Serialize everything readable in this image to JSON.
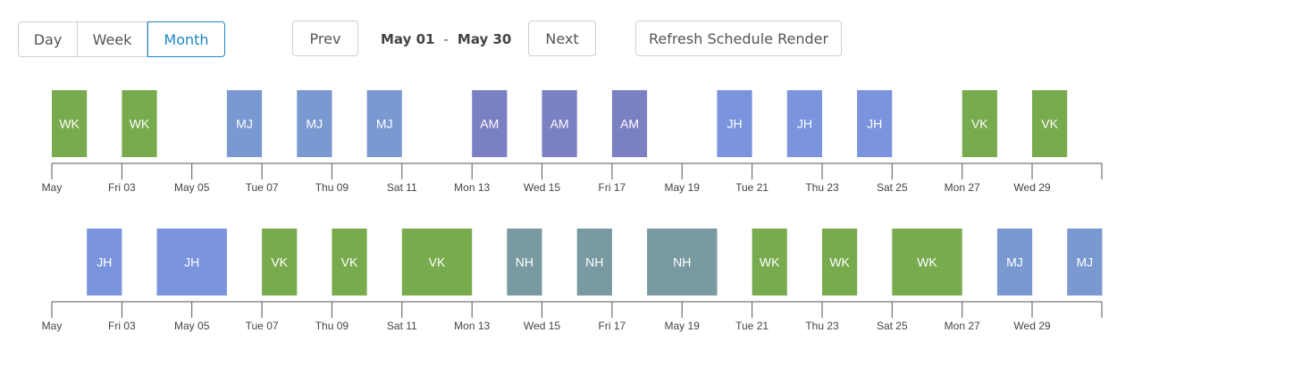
{
  "toolbar": {
    "view_day": "Day",
    "view_week": "Week",
    "view_month": "Month",
    "active_view": "Month",
    "prev": "Prev",
    "next": "Next",
    "range_start": "May 01",
    "range_sep": "-",
    "range_end": "May 30",
    "refresh": "Refresh Schedule Render"
  },
  "axis_ticks": [
    "May",
    "Fri 03",
    "May 05",
    "Tue 07",
    "Thu 09",
    "Sat 11",
    "Mon 13",
    "Wed 15",
    "Fri 17",
    "May 19",
    "Tue 21",
    "Thu 23",
    "Sat 25",
    "Mon 27",
    "Wed 29"
  ],
  "colors": {
    "WK": "#78aa4e",
    "VK": "#78aa4e",
    "MJ": "#7a99d0",
    "AM": "#7b80c2",
    "JH": "#7a95de",
    "NH": "#789aa0"
  },
  "timelines": [
    {
      "events": [
        {
          "label": "WK",
          "start": 1,
          "end": 2
        },
        {
          "label": "WK",
          "start": 3,
          "end": 4
        },
        {
          "label": "MJ",
          "start": 6,
          "end": 7
        },
        {
          "label": "MJ",
          "start": 8,
          "end": 9
        },
        {
          "label": "MJ",
          "start": 10,
          "end": 11
        },
        {
          "label": "AM",
          "start": 13,
          "end": 14
        },
        {
          "label": "AM",
          "start": 15,
          "end": 16
        },
        {
          "label": "AM",
          "start": 17,
          "end": 18
        },
        {
          "label": "JH",
          "start": 20,
          "end": 21
        },
        {
          "label": "JH",
          "start": 22,
          "end": 23
        },
        {
          "label": "JH",
          "start": 24,
          "end": 25
        },
        {
          "label": "VK",
          "start": 27,
          "end": 28
        },
        {
          "label": "VK",
          "start": 29,
          "end": 30
        }
      ]
    },
    {
      "events": [
        {
          "label": "JH",
          "start": 2,
          "end": 3
        },
        {
          "label": "JH",
          "start": 4,
          "end": 6
        },
        {
          "label": "VK",
          "start": 7,
          "end": 8
        },
        {
          "label": "VK",
          "start": 9,
          "end": 10
        },
        {
          "label": "VK",
          "start": 11,
          "end": 13
        },
        {
          "label": "NH",
          "start": 14,
          "end": 15
        },
        {
          "label": "NH",
          "start": 16,
          "end": 17
        },
        {
          "label": "NH",
          "start": 18,
          "end": 20
        },
        {
          "label": "WK",
          "start": 21,
          "end": 22
        },
        {
          "label": "WK",
          "start": 23,
          "end": 24
        },
        {
          "label": "WK",
          "start": 25,
          "end": 27
        },
        {
          "label": "MJ",
          "start": 28,
          "end": 29
        },
        {
          "label": "MJ",
          "start": 30,
          "end": 31
        }
      ]
    }
  ]
}
